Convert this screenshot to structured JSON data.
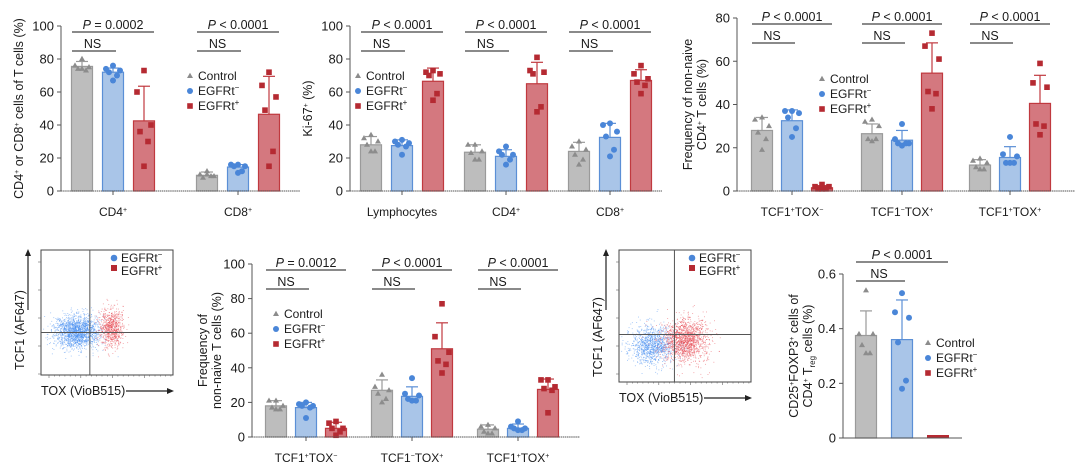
{
  "colors": {
    "control_fill": "#bdbdbd",
    "control_stroke": "#9a9a9a",
    "control_marker": "#8c8c8c",
    "egfrt_neg_fill": "#a9c5e8",
    "egfrt_neg_stroke": "#5b8fd6",
    "egfrt_neg_marker": "#4a86d8",
    "egfrt_pos_fill": "#d4787f",
    "egfrt_pos_stroke": "#c0393f",
    "egfrt_pos_marker": "#b52a32",
    "axis": "#555555",
    "flow_blue": "#4a8ff0",
    "flow_red": "#e8505a"
  },
  "legend": {
    "control": "Control",
    "egfrt_neg": "EGFRt",
    "egfrt_neg_sup": "−",
    "egfrt_pos": "EGFRt",
    "egfrt_pos_sup": "+"
  },
  "chart_data": [
    {
      "id": "panel-cd4-cd8",
      "type": "bar",
      "ylabel": "CD4⁺ or CD8⁺ cells of T cells (%)",
      "ylim": [
        0,
        100
      ],
      "yticks": [
        0,
        20,
        40,
        60,
        80,
        100
      ],
      "legend_position": "center-right",
      "categories": [
        "CD4⁺",
        "CD8⁺"
      ],
      "series": [
        {
          "name": "Control",
          "values": [
            75.5,
            9.5
          ],
          "err": [
            3,
            2
          ],
          "points": [
            [
              80,
              76,
              75,
              74,
              73,
              74
            ],
            [
              12,
              10,
              9,
              8,
              9,
              10
            ]
          ]
        },
        {
          "name": "EGFRt⁻",
          "values": [
            72,
            14.5
          ],
          "err": [
            2.5,
            1.5
          ],
          "points": [
            [
              76,
              74,
              73,
              72,
              70,
              67
            ],
            [
              16,
              16,
              15,
              15,
              12,
              11
            ]
          ]
        },
        {
          "name": "EGFRt⁺",
          "values": [
            42.5,
            46.5
          ],
          "err": [
            21,
            23
          ],
          "points": [
            [
              73,
              60,
              40,
              36,
              30,
              15
            ],
            [
              72,
              64,
              57,
              49,
              24,
              15
            ]
          ]
        }
      ],
      "annotations": [
        {
          "group": 0,
          "p": "P = 0.0002",
          "ns": "NS"
        },
        {
          "group": 1,
          "p": "P < 0.0001",
          "ns": "NS"
        }
      ]
    },
    {
      "id": "panel-ki67",
      "type": "bar",
      "ylabel": "Ki-67⁺ (%)",
      "ylim": [
        0,
        100
      ],
      "yticks": [
        0,
        20,
        40,
        60,
        80,
        100
      ],
      "legend_position": "center-left",
      "categories": [
        "Lymphocytes",
        "CD4⁺",
        "CD8⁺"
      ],
      "series": [
        {
          "name": "Control",
          "values": [
            28,
            23.5,
            24
          ],
          "err": [
            5,
            4.5,
            5.5
          ],
          "points": [
            [
              34,
              32,
              30,
              28,
              24,
              24
            ],
            [
              28,
              28,
              24,
              23,
              19,
              19
            ],
            [
              30,
              27,
              25,
              22,
              19,
              16
            ]
          ]
        },
        {
          "name": "EGFRt⁻",
          "values": [
            27.5,
            21,
            32.5
          ],
          "err": [
            3.5,
            4,
            8.5
          ],
          "points": [
            [
              31,
              30,
              29,
              28,
              27,
              22
            ],
            [
              27,
              24,
              22,
              22,
              19,
              16
            ],
            [
              41,
              40,
              36,
              33,
              25,
              21
            ]
          ]
        },
        {
          "name": "EGFRt⁺",
          "values": [
            66.5,
            65,
            67
          ],
          "err": [
            8,
            13,
            6.5
          ],
          "points": [
            [
              73,
              72,
              71,
              70,
              59,
              55
            ],
            [
              81,
              73,
              72,
              71,
              51,
              48
            ],
            [
              76,
              71,
              68,
              66,
              64,
              59
            ]
          ]
        }
      ],
      "annotations": [
        {
          "group": 0,
          "p": "P < 0.0001",
          "ns": "NS"
        },
        {
          "group": 1,
          "p": "P < 0.0001",
          "ns": "NS"
        },
        {
          "group": 2,
          "p": "P < 0.0001",
          "ns": "NS"
        }
      ]
    },
    {
      "id": "panel-cd4-tcf1-tox",
      "type": "bar",
      "ylabel": "Frequency of non-naive CD4⁺ T cells (%)",
      "ylabel_lines": [
        "Frequency of non-naive",
        "CD4⁺ T cells (%)"
      ],
      "ylim": [
        0,
        80
      ],
      "yticks": [
        0,
        20,
        40,
        60,
        80
      ],
      "legend_position": "center",
      "categories": [
        "TCF1⁺TOX⁻",
        "TCF1⁻TOX⁺",
        "TCF1⁺TOX⁺"
      ],
      "series": [
        {
          "name": "Control",
          "values": [
            28,
            26.5,
            12
          ],
          "err": [
            6,
            4.5,
            2.5
          ],
          "points": [
            [
              34,
              33,
              30,
              27,
              24,
              19
            ],
            [
              33,
              32,
              30,
              24,
              24,
              23
            ],
            [
              15,
              14,
              13,
              11,
              10,
              10
            ]
          ]
        },
        {
          "name": "EGFRt⁻",
          "values": [
            32.5,
            23.5,
            15.5
          ],
          "err": [
            5,
            4.5,
            5
          ],
          "points": [
            [
              37,
              37,
              36,
              34,
              29,
              25
            ],
            [
              31,
              24,
              22,
              22,
              22,
              21
            ],
            [
              25,
              17,
              16,
              13,
              13,
              13
            ]
          ]
        },
        {
          "name": "EGFRt⁺",
          "values": [
            1.5,
            54.5,
            40.5
          ],
          "err": [
            1,
            14,
            13
          ],
          "points": [
            [
              3,
              2,
              2,
              1,
              1,
              1
            ],
            [
              73,
              67,
              61,
              46,
              45,
              38
            ],
            [
              59,
              50,
              48,
              31,
              30,
              26
            ]
          ]
        }
      ],
      "annotations": [
        {
          "group": 0,
          "p": "P < 0.0001",
          "ns": "NS"
        },
        {
          "group": 1,
          "p": "P < 0.0001",
          "ns": "NS"
        },
        {
          "group": 2,
          "p": "P < 0.0001",
          "ns": "NS"
        }
      ]
    },
    {
      "id": "panel-flow-tcells",
      "type": "scatter",
      "xlabel": "TOX (VioB515)",
      "ylabel": "TCF1 (AF647)",
      "legend_position": "top-right",
      "series": [
        {
          "name": "EGFRt⁻",
          "color": "flow_blue",
          "cx": 0.27,
          "cy": 0.35,
          "sx": 0.14,
          "sy": 0.11,
          "n": 1700
        },
        {
          "name": "EGFRt⁺",
          "color": "flow_red",
          "cx": 0.53,
          "cy": 0.38,
          "sx": 0.08,
          "sy": 0.13,
          "n": 750
        }
      ],
      "gates": {
        "x": 0.37,
        "y": 0.34
      }
    },
    {
      "id": "panel-tcells-tcf1-tox",
      "type": "bar",
      "ylabel": "Frequency of non-naive T cells (%)",
      "ylabel_lines": [
        "Frequency of",
        "non-naive T cells (%)"
      ],
      "ylim": [
        0,
        100
      ],
      "yticks": [
        0,
        20,
        40,
        60,
        80,
        100
      ],
      "legend_position": "center-left",
      "categories": [
        "TCF1⁺TOX⁻",
        "TCF1⁻TOX⁺",
        "TCF1⁺TOX⁺"
      ],
      "series": [
        {
          "name": "Control",
          "values": [
            18,
            27,
            4.5
          ],
          "err": [
            3,
            6,
            2.5
          ],
          "points": [
            [
              21,
              21,
              18,
              17,
              16,
              16
            ],
            [
              36,
              29,
              27,
              25,
              22,
              20
            ],
            [
              7,
              6,
              5,
              3,
              2,
              2
            ]
          ]
        },
        {
          "name": "EGFRt⁻",
          "values": [
            17,
            23.5,
            5
          ],
          "err": [
            3,
            5.5,
            2.5
          ],
          "points": [
            [
              20,
              19,
              18,
              18,
              17,
              11
            ],
            [
              34,
              25,
              24,
              22,
              21,
              21
            ],
            [
              9,
              6,
              5,
              5,
              4,
              4
            ]
          ]
        },
        {
          "name": "EGFRt⁺",
          "values": [
            5,
            51,
            27.5
          ],
          "err": [
            3.5,
            15,
            6
          ],
          "points": [
            [
              9,
              8,
              5,
              5,
              3,
              1
            ],
            [
              77,
              58,
              49,
              44,
              42,
              37
            ],
            [
              33,
              33,
              29,
              28,
              27,
              14
            ]
          ]
        }
      ],
      "annotations": [
        {
          "group": 0,
          "p": "P = 0.0012",
          "ns": "NS"
        },
        {
          "group": 1,
          "p": "P < 0.0001",
          "ns": "NS"
        },
        {
          "group": 2,
          "p": "P < 0.0001",
          "ns": "NS"
        }
      ]
    },
    {
      "id": "panel-flow-cd4",
      "type": "scatter",
      "xlabel": "TOX (VioB515)",
      "ylabel": "TCF1 (AF647)",
      "legend_position": "top-right",
      "series": [
        {
          "name": "EGFRt⁻",
          "color": "flow_blue",
          "cx": 0.25,
          "cy": 0.28,
          "sx": 0.15,
          "sy": 0.12,
          "n": 1100
        },
        {
          "name": "EGFRt⁺",
          "color": "flow_red",
          "cx": 0.5,
          "cy": 0.32,
          "sx": 0.14,
          "sy": 0.14,
          "n": 1500
        }
      ],
      "gates": {
        "x": 0.42,
        "y": 0.36
      }
    },
    {
      "id": "panel-treg",
      "type": "bar",
      "ylabel": "CD25⁺FOXP3⁺ cells of CD4⁺ Treg cells (%)",
      "ylabel_lines": [
        "CD25⁺FOXP3⁺ cells of",
        "CD4⁺ T"
      ],
      "ylabel_sub": "reg",
      "ylabel_tail": " cells (%)",
      "ylim": [
        0,
        0.6
      ],
      "yticks": [
        0,
        0.2,
        0.4,
        0.6
      ],
      "legend_position": "right",
      "categories": [
        ""
      ],
      "series": [
        {
          "name": "Control",
          "values": [
            0.375
          ],
          "err": [
            0.09
          ],
          "points": [
            [
              0.54,
              0.38,
              0.38,
              0.34,
              0.31,
              0.31
            ]
          ]
        },
        {
          "name": "EGFRt⁻",
          "values": [
            0.36
          ],
          "err": [
            0.145
          ],
          "points": [
            [
              0.53,
              0.46,
              0.44,
              0.35,
              0.21,
              0.18
            ]
          ]
        },
        {
          "name": "EGFRt⁺",
          "values": [
            0.0
          ],
          "err": [
            0
          ],
          "points": [
            [
              0,
              0,
              0,
              0,
              0,
              0
            ]
          ]
        }
      ],
      "annotations": [
        {
          "group": 0,
          "p": "P < 0.0001",
          "ns": "NS"
        }
      ]
    }
  ]
}
